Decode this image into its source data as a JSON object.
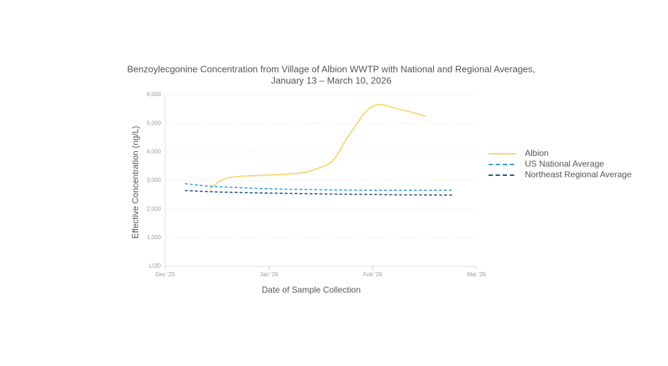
{
  "chart_data": {
    "type": "line",
    "title": "Benzoylecgonine Concentration from Village of Albion WWTP with National and Regional Averages,",
    "subtitle": "January 13 – March 10, 2026",
    "x_label": "Date of Sample Collection",
    "y_label": "Effective Concentration (ng/L)",
    "x": [
      0.19,
      0.43,
      0.6,
      1.0,
      1.3,
      1.46,
      1.62,
      1.77,
      2.0,
      2.25,
      2.51,
      2.77
    ],
    "series": [
      {
        "name": "Albion",
        "color": "#f9d46e",
        "dashed": false,
        "values": [
          null,
          2690,
          3090,
          3190,
          3260,
          3410,
          3710,
          4580,
          5600,
          5500,
          5250,
          null
        ]
      },
      {
        "name": "US National Average",
        "color": "#2e9fe0",
        "dashed": true,
        "values": [
          2890,
          2800,
          2770,
          2710,
          2690,
          2680,
          2670,
          2665,
          2660,
          2660,
          2660,
          2660
        ]
      },
      {
        "name": "Northeast Regional Average",
        "color": "#1f4e79",
        "dashed": true,
        "values": [
          2650,
          2610,
          2590,
          2560,
          2545,
          2535,
          2525,
          2520,
          2510,
          2500,
          2495,
          2490
        ]
      }
    ],
    "xlim": [
      0,
      3
    ],
    "xticks": [
      {
        "value": 0,
        "label": "Dec '25"
      },
      {
        "value": 1,
        "label": "Jan '26"
      },
      {
        "value": 2,
        "label": "Feb '26"
      },
      {
        "value": 3,
        "label": "Mar '26"
      }
    ],
    "ylim": [
      0,
      6000
    ],
    "yticks": [
      {
        "value": 0,
        "label": "LOD"
      },
      {
        "value": 1000,
        "label": "1,000"
      },
      {
        "value": 2000,
        "label": "2,000"
      },
      {
        "value": 3000,
        "label": "3,000"
      },
      {
        "value": 4000,
        "label": "4,000"
      },
      {
        "value": 5000,
        "label": "5,000"
      },
      {
        "value": 6000,
        "label": "6,000"
      }
    ],
    "grid": true,
    "legend": "right"
  }
}
